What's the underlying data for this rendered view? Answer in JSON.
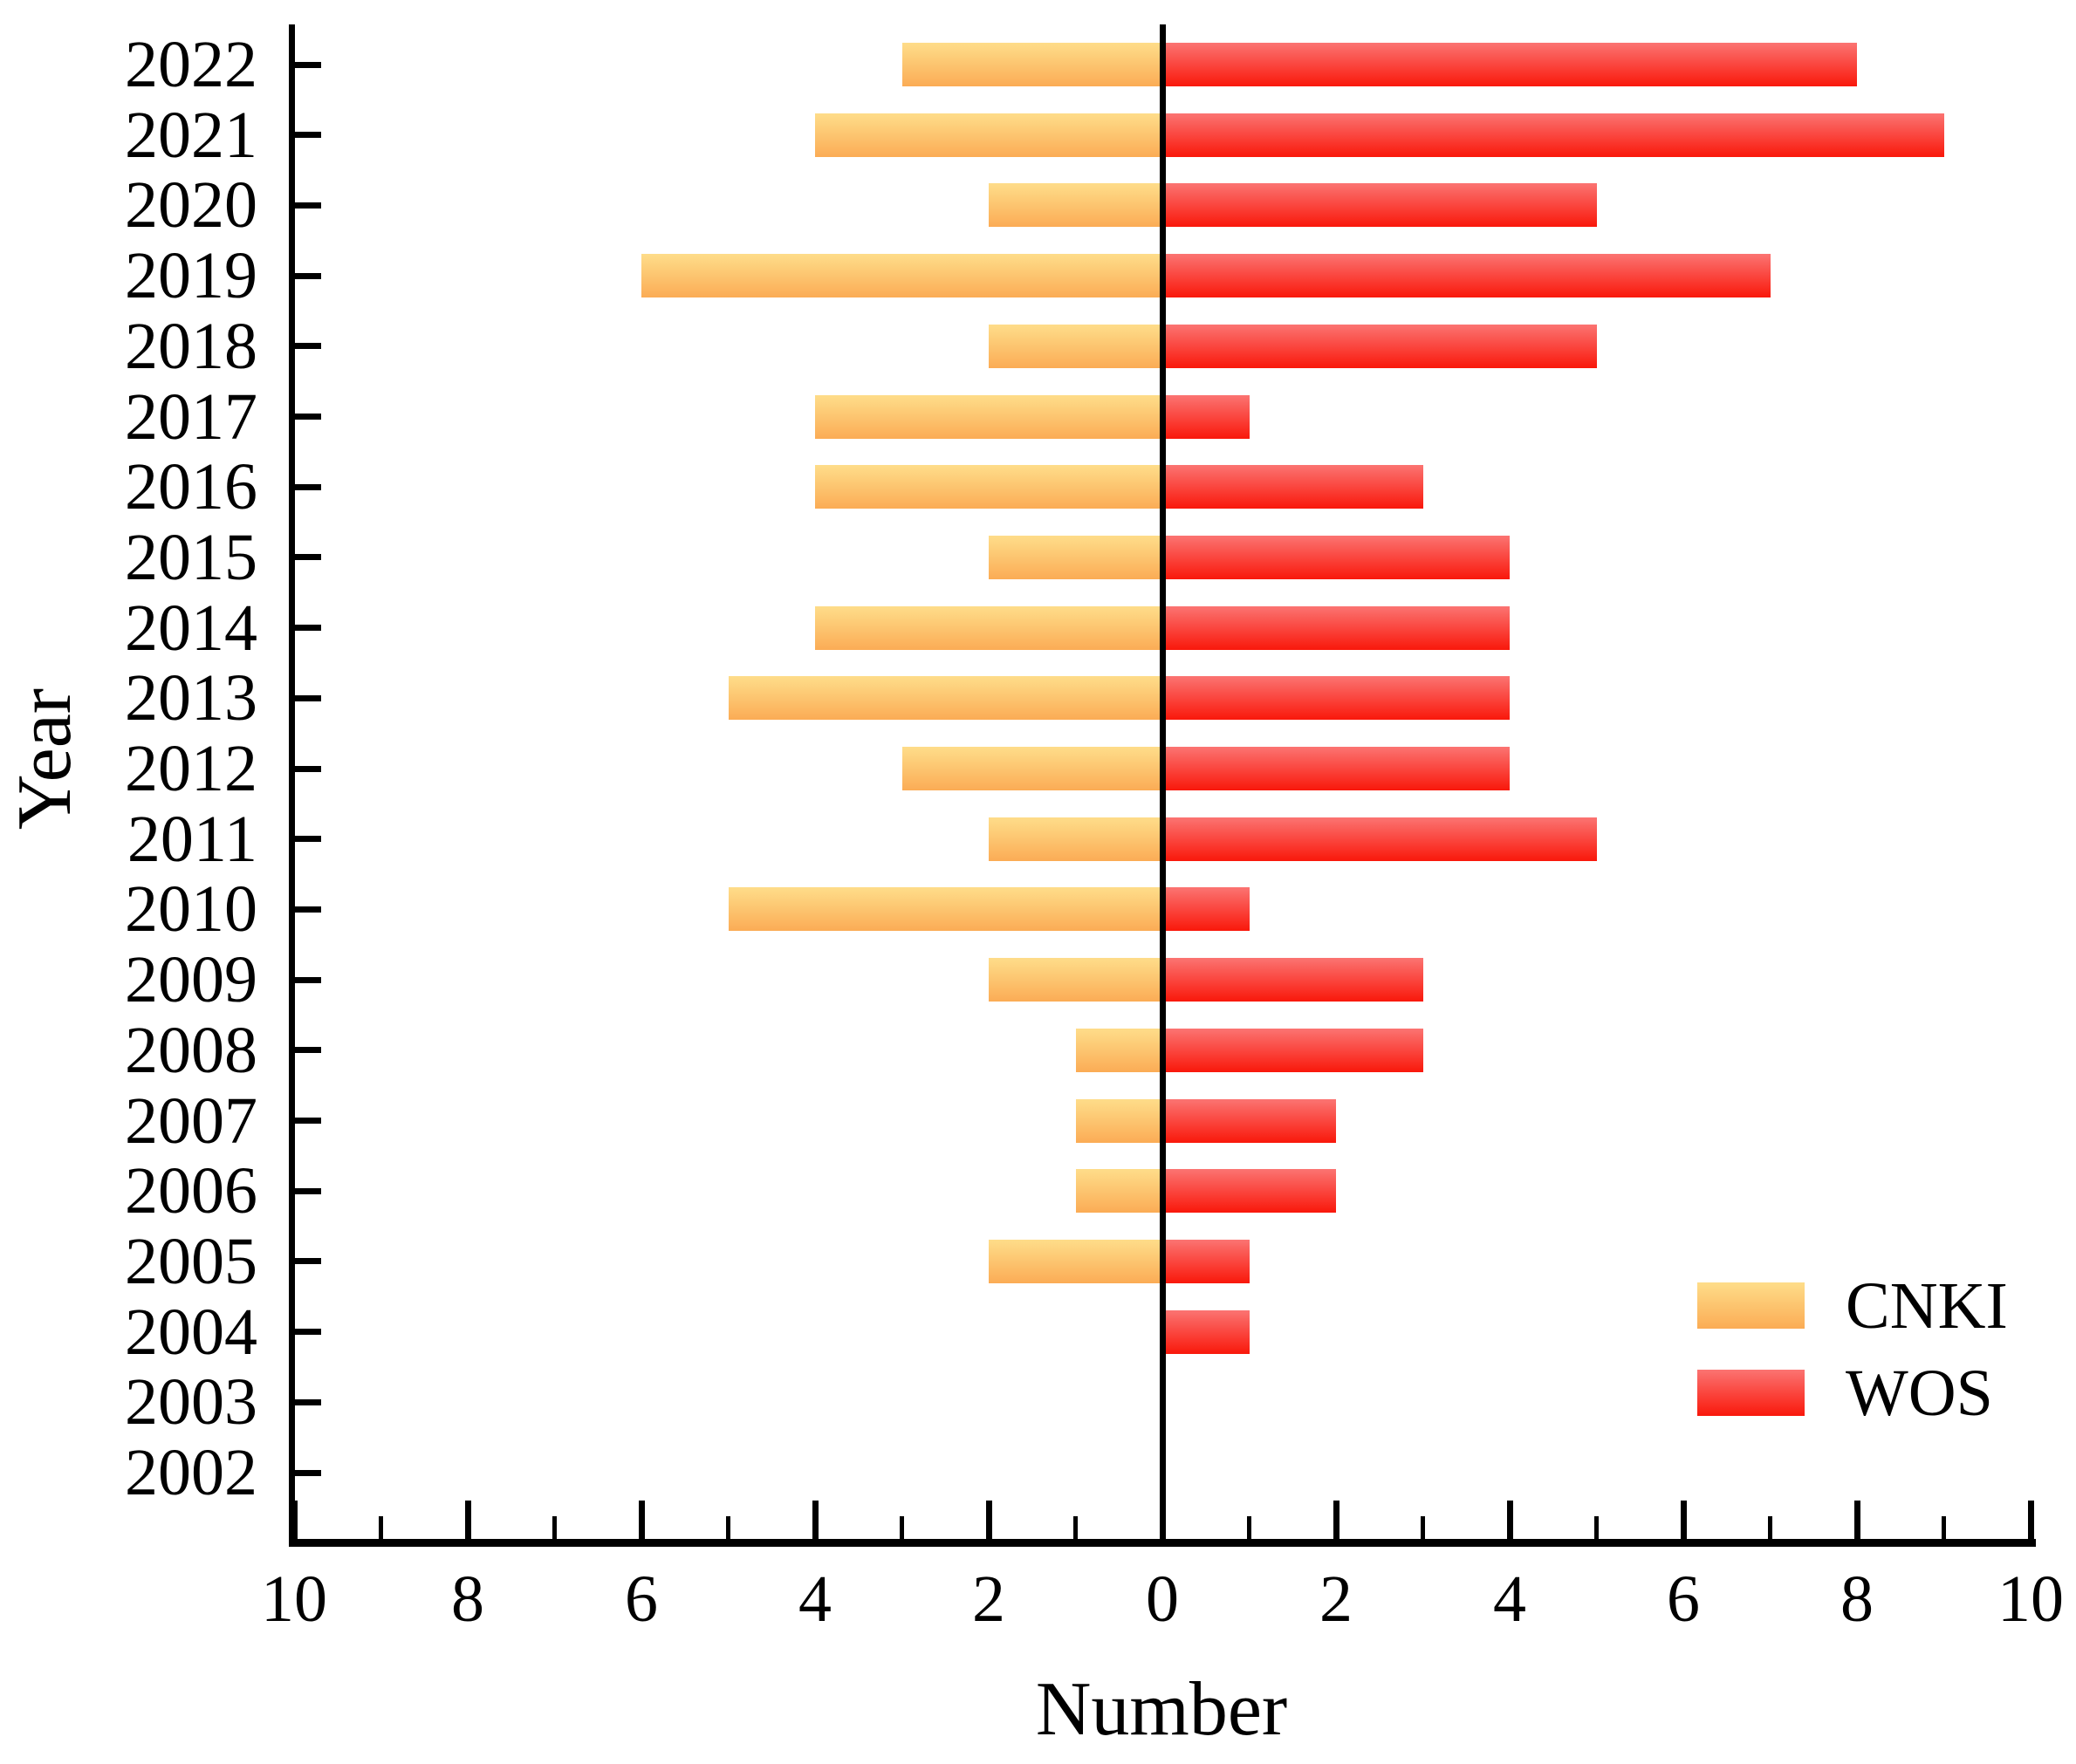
{
  "chart_data": {
    "type": "bar",
    "orientation": "diverging-horizontal",
    "title": "",
    "xlabel": "Number",
    "ylabel": "Year",
    "categories": [
      "2022",
      "2021",
      "2020",
      "2019",
      "2018",
      "2017",
      "2016",
      "2015",
      "2014",
      "2013",
      "2012",
      "2011",
      "2010",
      "2009",
      "2008",
      "2007",
      "2006",
      "2005",
      "2004",
      "2003",
      "2002"
    ],
    "series": [
      {
        "name": "CNKI",
        "side": "left",
        "color_top": "#FEDD8A",
        "color_bottom": "#FBAC55",
        "values": [
          3,
          4,
          2,
          6,
          2,
          4,
          4,
          2,
          4,
          5,
          3,
          2,
          5,
          2,
          1,
          1,
          1,
          2,
          0,
          0,
          0
        ]
      },
      {
        "name": "WOS",
        "side": "right",
        "color_top": "#FB7472",
        "color_bottom": "#F9180B",
        "values": [
          8,
          9,
          5,
          7,
          5,
          1,
          3,
          4,
          4,
          4,
          4,
          5,
          1,
          3,
          3,
          2,
          2,
          1,
          1,
          0,
          0
        ]
      }
    ],
    "x_axis": {
      "tick_labels": [
        "10",
        "8",
        "6",
        "4",
        "2",
        "0",
        "2",
        "4",
        "6",
        "8",
        "10"
      ],
      "max_each_side": 10,
      "major_tick_step": 2,
      "minor_tick_step": 1
    },
    "axis_color": "#000000",
    "background_color": "#FFFFFF",
    "legend": {
      "position": "lower-right",
      "entries": [
        "CNKI",
        "WOS"
      ]
    }
  }
}
